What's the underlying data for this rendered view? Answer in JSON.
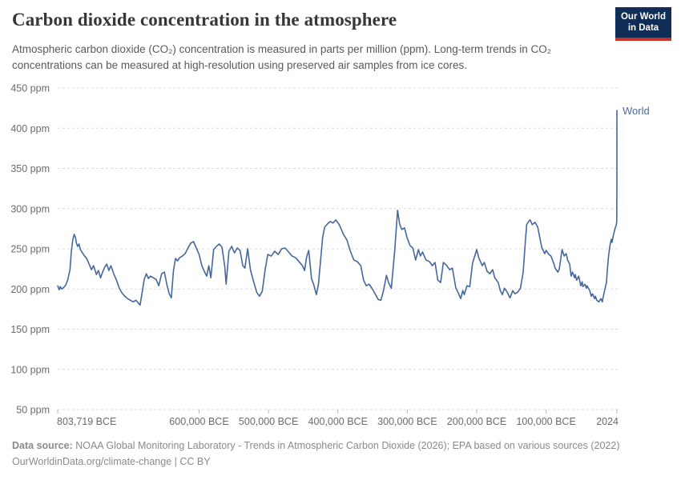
{
  "header": {
    "title": "Carbon dioxide concentration in the atmosphere",
    "subtitle": "Atmospheric carbon dioxide (CO₂) concentration is measured in parts per million (ppm). Long-term trends in CO₂ concentrations can be measured at high-resolution using preserved air samples from ice cores."
  },
  "logo": {
    "line1": "Our World",
    "line2": "in Data",
    "bg_color": "#102d58",
    "accent_color": "#c7322a"
  },
  "chart_data": {
    "type": "line",
    "title": "Carbon dioxide concentration in the atmosphere",
    "unit": "ppm",
    "xlabel": "",
    "ylabel": "",
    "ylim": [
      50,
      450
    ],
    "xlim": [
      -803719,
      2024
    ],
    "grid": "dashed-horizontal",
    "legend_position": "end-of-line",
    "y_ticks": [
      {
        "value": 450,
        "label": "450 ppm"
      },
      {
        "value": 400,
        "label": "400 ppm"
      },
      {
        "value": 350,
        "label": "350 ppm"
      },
      {
        "value": 300,
        "label": "300 ppm"
      },
      {
        "value": 250,
        "label": "250 ppm"
      },
      {
        "value": 200,
        "label": "200 ppm"
      },
      {
        "value": 150,
        "label": "150 ppm"
      },
      {
        "value": 100,
        "label": "100 ppm"
      },
      {
        "value": 50,
        "label": "50 ppm"
      }
    ],
    "x_ticks": [
      {
        "year": -803719,
        "label": "803,719 BCE",
        "align": "start"
      },
      {
        "year": -600000,
        "label": "600,000 BCE",
        "align": "middle"
      },
      {
        "year": -500000,
        "label": "500,000 BCE",
        "align": "middle"
      },
      {
        "year": -400000,
        "label": "400,000 BCE",
        "align": "middle"
      },
      {
        "year": -300000,
        "label": "300,000 BCE",
        "align": "middle"
      },
      {
        "year": -200000,
        "label": "200,000 BCE",
        "align": "middle"
      },
      {
        "year": -100000,
        "label": "100,000 BCE",
        "align": "middle"
      },
      {
        "year": 2024,
        "label": "2024",
        "align": "end"
      }
    ],
    "colors": {
      "line": "#45679e",
      "entity_label": "#4c6a9c",
      "gridline": "#dcdcdc",
      "tick": "#b8b8b8",
      "axis_text": "#6b6b6b"
    },
    "series": [
      {
        "name": "World",
        "color": "#45679e",
        "points": [
          [
            -803719,
            204
          ],
          [
            -801500,
            199
          ],
          [
            -800000,
            203
          ],
          [
            -798000,
            200
          ],
          [
            -795000,
            202
          ],
          [
            -792000,
            205
          ],
          [
            -789000,
            212
          ],
          [
            -786000,
            224
          ],
          [
            -784000,
            247
          ],
          [
            -782000,
            261
          ],
          [
            -780000,
            268
          ],
          [
            -778000,
            264
          ],
          [
            -777000,
            258
          ],
          [
            -775000,
            253
          ],
          [
            -773000,
            256
          ],
          [
            -771000,
            249
          ],
          [
            -768000,
            245
          ],
          [
            -765000,
            241
          ],
          [
            -762000,
            238
          ],
          [
            -758000,
            230
          ],
          [
            -755000,
            224
          ],
          [
            -752000,
            229
          ],
          [
            -748000,
            218
          ],
          [
            -745000,
            223
          ],
          [
            -742000,
            214
          ],
          [
            -739000,
            221
          ],
          [
            -736000,
            227
          ],
          [
            -733000,
            231
          ],
          [
            -730000,
            223
          ],
          [
            -727000,
            229
          ],
          [
            -723000,
            219
          ],
          [
            -719000,
            211
          ],
          [
            -715000,
            201
          ],
          [
            -711000,
            195
          ],
          [
            -707000,
            191
          ],
          [
            -703000,
            188
          ],
          [
            -699000,
            186
          ],
          [
            -695000,
            184
          ],
          [
            -691000,
            186
          ],
          [
            -688000,
            183
          ],
          [
            -685000,
            180
          ],
          [
            -682000,
            196
          ],
          [
            -679000,
            212
          ],
          [
            -676000,
            219
          ],
          [
            -673000,
            213
          ],
          [
            -670000,
            216
          ],
          [
            -666000,
            214
          ],
          [
            -662000,
            212
          ],
          [
            -658000,
            204
          ],
          [
            -654000,
            219
          ],
          [
            -650000,
            221
          ],
          [
            -646000,
            204
          ],
          [
            -643000,
            194
          ],
          [
            -640000,
            189
          ],
          [
            -637000,
            222
          ],
          [
            -634000,
            238
          ],
          [
            -631000,
            235
          ],
          [
            -628000,
            239
          ],
          [
            -624000,
            241
          ],
          [
            -620000,
            244
          ],
          [
            -616000,
            251
          ],
          [
            -612000,
            257
          ],
          [
            -608000,
            259
          ],
          [
            -604000,
            251
          ],
          [
            -600000,
            243
          ],
          [
            -596000,
            229
          ],
          [
            -592000,
            221
          ],
          [
            -589000,
            216
          ],
          [
            -586000,
            229
          ],
          [
            -583000,
            214
          ],
          [
            -579000,
            249
          ],
          [
            -575000,
            253
          ],
          [
            -571000,
            256
          ],
          [
            -567000,
            252
          ],
          [
            -563000,
            228
          ],
          [
            -561000,
            206
          ],
          [
            -557000,
            247
          ],
          [
            -553000,
            253
          ],
          [
            -549000,
            245
          ],
          [
            -545000,
            251
          ],
          [
            -541000,
            248
          ],
          [
            -537000,
            229
          ],
          [
            -534000,
            226
          ],
          [
            -530000,
            250
          ],
          [
            -526000,
            224
          ],
          [
            -522000,
            211
          ],
          [
            -517000,
            196
          ],
          [
            -513000,
            191
          ],
          [
            -509000,
            197
          ],
          [
            -505000,
            223
          ],
          [
            -501000,
            243
          ],
          [
            -496000,
            241
          ],
          [
            -491000,
            247
          ],
          [
            -486000,
            243
          ],
          [
            -481000,
            250
          ],
          [
            -476000,
            251
          ],
          [
            -471000,
            246
          ],
          [
            -466000,
            241
          ],
          [
            -461000,
            239
          ],
          [
            -456000,
            234
          ],
          [
            -451000,
            229
          ],
          [
            -448000,
            223
          ],
          [
            -445000,
            240
          ],
          [
            -442000,
            248
          ],
          [
            -438000,
            213
          ],
          [
            -435000,
            206
          ],
          [
            -431000,
            193
          ],
          [
            -428000,
            206
          ],
          [
            -425000,
            235
          ],
          [
            -422000,
            264
          ],
          [
            -419000,
            277
          ],
          [
            -415000,
            281
          ],
          [
            -411000,
            284
          ],
          [
            -407000,
            282
          ],
          [
            -403000,
            286
          ],
          [
            -398000,
            280
          ],
          [
            -392000,
            268
          ],
          [
            -387000,
            261
          ],
          [
            -382000,
            247
          ],
          [
            -377000,
            236
          ],
          [
            -372000,
            234
          ],
          [
            -367000,
            229
          ],
          [
            -363000,
            211
          ],
          [
            -359000,
            204
          ],
          [
            -355000,
            206
          ],
          [
            -351000,
            201
          ],
          [
            -347000,
            195
          ],
          [
            -342000,
            187
          ],
          [
            -338000,
            186
          ],
          [
            -334000,
            199
          ],
          [
            -330000,
            217
          ],
          [
            -327000,
            208
          ],
          [
            -323000,
            201
          ],
          [
            -318000,
            249
          ],
          [
            -314000,
            298
          ],
          [
            -311000,
            281
          ],
          [
            -308000,
            274
          ],
          [
            -304000,
            276
          ],
          [
            -300000,
            263
          ],
          [
            -296000,
            254
          ],
          [
            -292000,
            251
          ],
          [
            -288000,
            236
          ],
          [
            -284000,
            249
          ],
          [
            -281000,
            241
          ],
          [
            -278000,
            246
          ],
          [
            -273000,
            236
          ],
          [
            -268000,
            234
          ],
          [
            -264000,
            229
          ],
          [
            -260000,
            233
          ],
          [
            -256000,
            211
          ],
          [
            -252000,
            208
          ],
          [
            -248000,
            233
          ],
          [
            -244000,
            230
          ],
          [
            -239000,
            224
          ],
          [
            -235000,
            226
          ],
          [
            -230000,
            201
          ],
          [
            -227000,
            196
          ],
          [
            -223000,
            188
          ],
          [
            -220000,
            198
          ],
          [
            -218000,
            193
          ],
          [
            -214000,
            204
          ],
          [
            -210000,
            203
          ],
          [
            -206000,
            232
          ],
          [
            -200000,
            249
          ],
          [
            -197000,
            239
          ],
          [
            -192000,
            229
          ],
          [
            -189000,
            233
          ],
          [
            -185000,
            222
          ],
          [
            -181000,
            219
          ],
          [
            -177000,
            224
          ],
          [
            -174000,
            214
          ],
          [
            -169000,
            208
          ],
          [
            -166000,
            198
          ],
          [
            -163000,
            193
          ],
          [
            -160000,
            201
          ],
          [
            -156000,
            196
          ],
          [
            -152000,
            189
          ],
          [
            -148000,
            198
          ],
          [
            -145000,
            194
          ],
          [
            -141000,
            196
          ],
          [
            -137000,
            201
          ],
          [
            -133000,
            221
          ],
          [
            -130000,
            258
          ],
          [
            -128000,
            280
          ],
          [
            -125000,
            284
          ],
          [
            -123000,
            286
          ],
          [
            -120000,
            280
          ],
          [
            -116000,
            283
          ],
          [
            -112000,
            277
          ],
          [
            -108000,
            259
          ],
          [
            -106000,
            251
          ],
          [
            -102000,
            244
          ],
          [
            -100000,
            248
          ],
          [
            -96000,
            243
          ],
          [
            -93000,
            241
          ],
          [
            -89000,
            232
          ],
          [
            -87000,
            226
          ],
          [
            -83000,
            221
          ],
          [
            -81000,
            225
          ],
          [
            -77000,
            249
          ],
          [
            -74000,
            241
          ],
          [
            -71000,
            244
          ],
          [
            -69000,
            236
          ],
          [
            -66000,
            231
          ],
          [
            -64000,
            216
          ],
          [
            -62000,
            221
          ],
          [
            -59000,
            214
          ],
          [
            -58000,
            218
          ],
          [
            -56000,
            211
          ],
          [
            -53000,
            216
          ],
          [
            -50000,
            204
          ],
          [
            -48000,
            209
          ],
          [
            -47000,
            203
          ],
          [
            -44000,
            206
          ],
          [
            -42000,
            201
          ],
          [
            -41000,
            204
          ],
          [
            -37000,
            198
          ],
          [
            -35000,
            191
          ],
          [
            -33000,
            194
          ],
          [
            -30000,
            188
          ],
          [
            -29000,
            191
          ],
          [
            -27000,
            186
          ],
          [
            -24000,
            184
          ],
          [
            -21000,
            188
          ],
          [
            -19000,
            184
          ],
          [
            -18000,
            189
          ],
          [
            -15000,
            201
          ],
          [
            -13000,
            208
          ],
          [
            -12000,
            221
          ],
          [
            -10000,
            241
          ],
          [
            -8000,
            254
          ],
          [
            -6000,
            262
          ],
          [
            -5000,
            258
          ],
          [
            -3000,
            267
          ],
          [
            -1000,
            274
          ],
          [
            0,
            277
          ],
          [
            500,
            278
          ],
          [
            1000,
            279
          ],
          [
            1500,
            282
          ],
          [
            1800,
            285
          ],
          [
            1900,
            296
          ],
          [
            1950,
            312
          ],
          [
            1980,
            338
          ],
          [
            2000,
            369
          ],
          [
            2010,
            390
          ],
          [
            2024,
            422
          ]
        ]
      }
    ]
  },
  "footer": {
    "source_label": "Data source:",
    "source_text": " NOAA Global Monitoring Laboratory - Trends in Atmospheric Carbon Dioxide (2026); EPA based on various sources (2022)",
    "license_line": "OurWorldinData.org/climate-change | CC BY"
  }
}
